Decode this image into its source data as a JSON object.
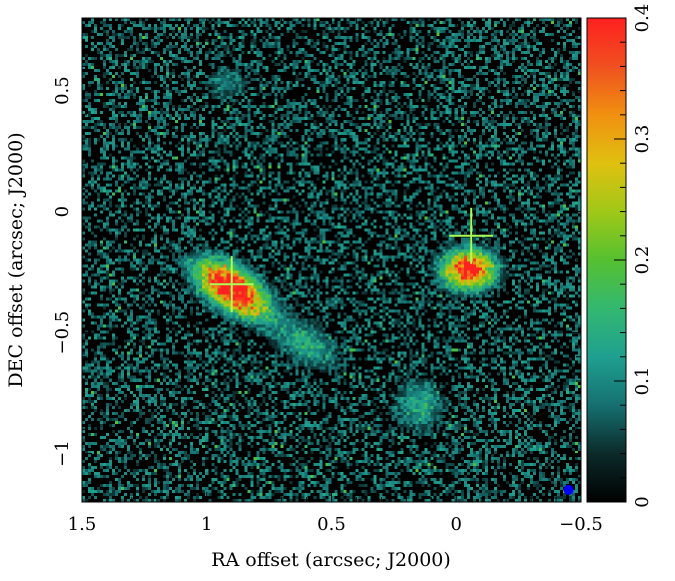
{
  "chart_data": {
    "type": "heatmap",
    "xlabel": "RA offset (arcsec; J2000)",
    "ylabel": "DEC offset (arcsec; J2000)",
    "xlim": [
      1.5,
      -0.5
    ],
    "ylim": [
      -1.2,
      0.8
    ],
    "x_ticks": [
      1.5,
      1,
      0.5,
      0,
      -0.5
    ],
    "x_tick_labels": [
      "1.5",
      "1",
      "0.5",
      "0",
      "−0.5"
    ],
    "y_ticks": [
      -1,
      -0.5,
      0,
      0.5
    ],
    "y_tick_labels": [
      "−1",
      "−0.5",
      "0",
      "0.5"
    ],
    "colorbar": {
      "range": [
        0,
        0.4
      ],
      "ticks": [
        0,
        0.1,
        0.2,
        0.3,
        0.4
      ],
      "tick_labels": [
        "0",
        "0.1",
        "0.2",
        "0.3",
        "0.4"
      ],
      "colors": [
        "#000000",
        "#0c2a2a",
        "#167070",
        "#1fa090",
        "#33b870",
        "#55c030",
        "#a0c818",
        "#e0c010",
        "#f09010",
        "#f05020",
        "#ff2020"
      ]
    },
    "sources": [
      {
        "name": "west-bright-source",
        "x": 0.9,
        "y": -0.32,
        "sx": 0.11,
        "sy": 0.055,
        "angle": -35,
        "peak": 0.46
      },
      {
        "name": "east-source",
        "x": -0.05,
        "y": -0.24,
        "sx": 0.07,
        "sy": 0.055,
        "angle": 0,
        "peak": 0.42
      },
      {
        "name": "faint-tail",
        "x": 0.6,
        "y": -0.55,
        "sx": 0.1,
        "sy": 0.06,
        "angle": -30,
        "peak": 0.12
      },
      {
        "name": "faint-knot-south",
        "x": 0.15,
        "y": -0.8,
        "sx": 0.07,
        "sy": 0.07,
        "angle": 0,
        "peak": 0.12
      },
      {
        "name": "faint-knot-north",
        "x": 0.92,
        "y": 0.53,
        "sx": 0.06,
        "sy": 0.05,
        "angle": 0,
        "peak": 0.08
      }
    ],
    "markers": [
      {
        "name": "west-cross-marker",
        "x": 0.9,
        "y": -0.3,
        "color": "#aaff55"
      },
      {
        "name": "east-cross-marker",
        "x": -0.06,
        "y": -0.1,
        "color": "#aaff55"
      }
    ],
    "beam": {
      "x": -0.45,
      "y": -1.15,
      "color": "#0000ff"
    }
  }
}
